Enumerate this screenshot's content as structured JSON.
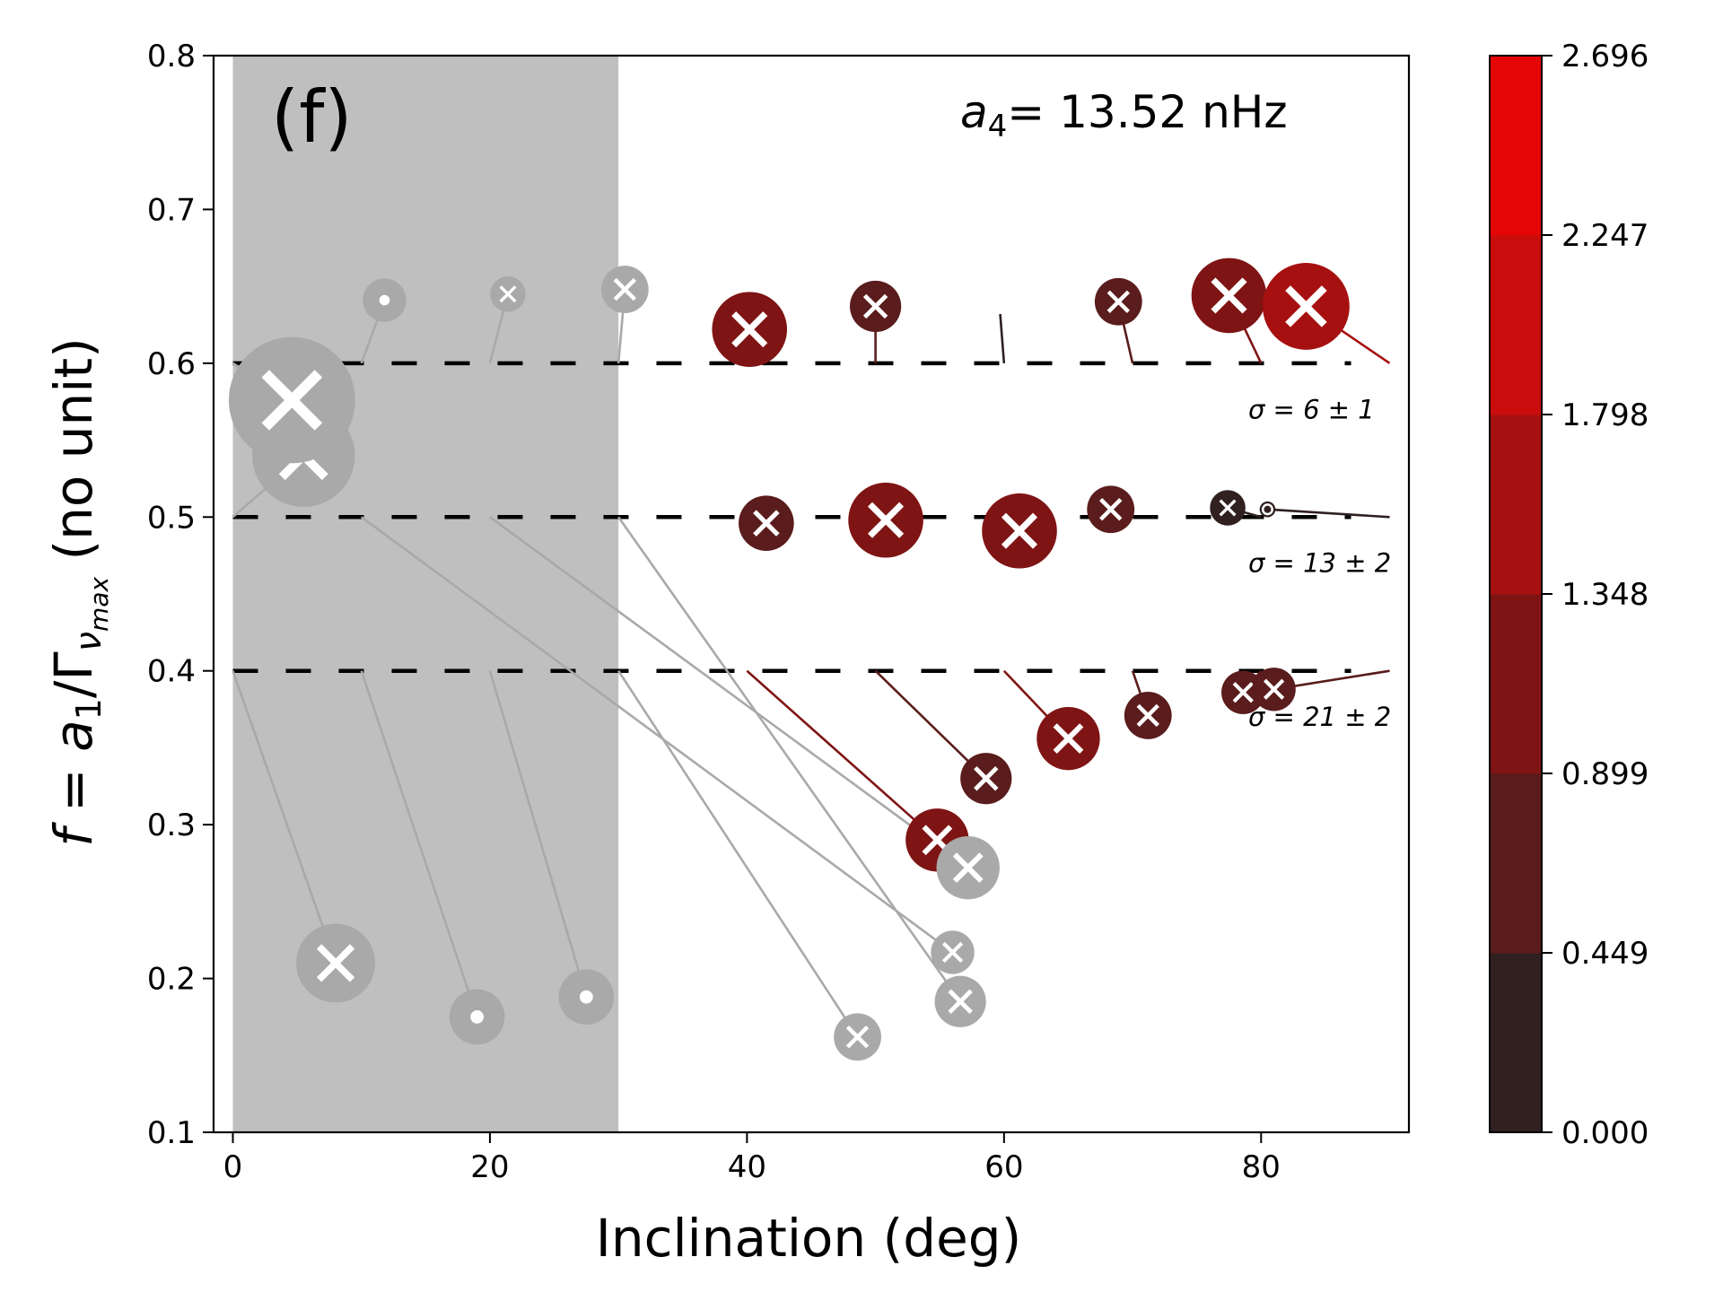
{
  "chart_data": {
    "type": "scatter",
    "panel_label": "(f)",
    "parameter_label": {
      "name_base": "a",
      "name_sub": "4",
      "text": "= 13.52 nHz"
    },
    "xlabel": "Inclination (deg)",
    "ylabel": {
      "prefix": "f",
      "eq": " = ",
      "a": "a",
      "a_sub": "1",
      "slash": "/Γ",
      "nu": "ν",
      "nu_sub": "max",
      "unit": " (no unit)"
    },
    "xlim": [
      -1.5,
      91.5
    ],
    "ylim": [
      0.1,
      0.8
    ],
    "xticks": [
      0,
      20,
      40,
      60,
      80
    ],
    "xtick_labels": [
      "0",
      "20",
      "40",
      "60",
      "80"
    ],
    "yticks": [
      0.1,
      0.2,
      0.3,
      0.4,
      0.5,
      0.6,
      0.7,
      0.8
    ],
    "ytick_labels": [
      "0.1",
      "0.2",
      "0.3",
      "0.4",
      "0.5",
      "0.6",
      "0.7",
      "0.8"
    ],
    "shaded_region": {
      "x0": 0,
      "x1": 30,
      "color": "#bfbfbf"
    },
    "reference_lines": [
      {
        "y": 0.6,
        "label": "σ = 6 ± 1",
        "label_x": 79,
        "label_y": 0.57
      },
      {
        "y": 0.5,
        "label": "σ = 13 ± 2",
        "label_x": 79,
        "label_y": 0.47
      },
      {
        "y": 0.4,
        "label": "σ = 21 ± 2",
        "label_x": 79,
        "label_y": 0.37
      }
    ],
    "colorbar": {
      "ticks": [
        "0.000",
        "0.449",
        "0.899",
        "1.348",
        "1.798",
        "2.247",
        "2.696"
      ],
      "min": 0,
      "max": 2.696,
      "colors": [
        "#302020",
        "#5a1c1c",
        "#7f1414",
        "#a71010",
        "#c90c0c",
        "#e40606",
        "#ff0000"
      ]
    },
    "marker_colors": {
      "biased_gray": "#a9a9a9",
      "cross": "#ffffff"
    },
    "points": [
      {
        "x0": 0,
        "y0": 0.4,
        "x": 8,
        "y": 0.21,
        "size": 2.0,
        "value": null,
        "marker": "x"
      },
      {
        "x0": 10,
        "y0": 0.4,
        "x": 19,
        "y": 0.175,
        "size": 1.4,
        "value": null,
        "marker": "dot"
      },
      {
        "x0": 20,
        "y0": 0.4,
        "x": 27.5,
        "y": 0.188,
        "size": 1.4,
        "value": null,
        "marker": "dot"
      },
      {
        "x0": 30,
        "y0": 0.4,
        "x": 48.6,
        "y": 0.162,
        "size": 1.2,
        "value": null,
        "marker": "x"
      },
      {
        "x0": 40,
        "y0": 0.4,
        "x": 54.8,
        "y": 0.29,
        "size": 1.6,
        "value": 1.2,
        "marker": "x"
      },
      {
        "x0": 50,
        "y0": 0.4,
        "x": 58.6,
        "y": 0.33,
        "size": 1.3,
        "value": 0.5,
        "marker": "x"
      },
      {
        "x0": 60,
        "y0": 0.4,
        "x": 65,
        "y": 0.356,
        "size": 1.6,
        "value": 1.1,
        "marker": "x"
      },
      {
        "x0": 70,
        "y0": 0.4,
        "x": 71.2,
        "y": 0.371,
        "size": 1.2,
        "value": 0.6,
        "marker": "x"
      },
      {
        "x0": 80,
        "y0": 0.4,
        "x": 78.6,
        "y": 0.386,
        "size": 1.1,
        "value": 0.7,
        "marker": "x"
      },
      {
        "x0": 90,
        "y0": 0.4,
        "x": 81,
        "y": 0.388,
        "size": 1.1,
        "value": 0.8,
        "marker": "x"
      },
      {
        "x0": 0,
        "y0": 0.5,
        "x": 5.5,
        "y": 0.54,
        "size": 2.6,
        "value": null,
        "marker": "x"
      },
      {
        "x0": 10,
        "y0": 0.5,
        "x": 56,
        "y": 0.217,
        "size": 1.1,
        "value": null,
        "marker": "x"
      },
      {
        "x0": 20,
        "y0": 0.5,
        "x": 57.2,
        "y": 0.272,
        "size": 1.6,
        "value": null,
        "marker": "x"
      },
      {
        "x0": 30,
        "y0": 0.5,
        "x": 56.6,
        "y": 0.185,
        "size": 1.3,
        "value": null,
        "marker": "x"
      },
      {
        "x0": 40,
        "y0": 0.5,
        "x": 41.5,
        "y": 0.496,
        "size": 1.4,
        "value": 0.6,
        "marker": "x"
      },
      {
        "x0": 50,
        "y0": 0.5,
        "x": 50.8,
        "y": 0.498,
        "size": 1.9,
        "value": 1.3,
        "marker": "x"
      },
      {
        "x0": 60,
        "y0": 0.5,
        "x": 61.2,
        "y": 0.491,
        "size": 1.9,
        "value": 1.2,
        "marker": "x"
      },
      {
        "x0": 70,
        "y0": 0.5,
        "x": 68.3,
        "y": 0.505,
        "size": 1.2,
        "value": 0.55,
        "marker": "x"
      },
      {
        "x0": 80,
        "y0": 0.5,
        "x": 77.4,
        "y": 0.506,
        "size": 0.9,
        "value": 0.35,
        "marker": "x"
      },
      {
        "x0": 90,
        "y0": 0.5,
        "x": 80.5,
        "y": 0.505,
        "size": 0.4,
        "value": 0.3,
        "marker": "o"
      },
      {
        "x0": 0,
        "y0": 0.6,
        "x": 4.6,
        "y": 0.576,
        "size": 3.2,
        "value": null,
        "marker": "x"
      },
      {
        "x0": 10,
        "y0": 0.6,
        "x": 11.8,
        "y": 0.641,
        "size": 1.1,
        "value": null,
        "marker": "dot"
      },
      {
        "x0": 20,
        "y0": 0.6,
        "x": 21.4,
        "y": 0.645,
        "size": 0.9,
        "value": null,
        "marker": "x"
      },
      {
        "x0": 30,
        "y0": 0.6,
        "x": 30.5,
        "y": 0.648,
        "size": 1.2,
        "value": null,
        "marker": "x"
      },
      {
        "x0": 40,
        "y0": 0.6,
        "x": 40.2,
        "y": 0.622,
        "size": 1.9,
        "value": 1.2,
        "marker": "x"
      },
      {
        "x0": 50,
        "y0": 0.6,
        "x": 50,
        "y": 0.637,
        "size": 1.3,
        "value": 0.6,
        "marker": "x"
      },
      {
        "x0": 60,
        "y0": 0.6,
        "x": 59.7,
        "y": 0.632,
        "size": 0,
        "value": 0.2,
        "marker": "none"
      },
      {
        "x0": 70,
        "y0": 0.6,
        "x": 68.9,
        "y": 0.64,
        "size": 1.2,
        "value": 0.55,
        "marker": "x"
      },
      {
        "x0": 80,
        "y0": 0.6,
        "x": 77.5,
        "y": 0.644,
        "size": 1.9,
        "value": 1.2,
        "marker": "x"
      },
      {
        "x0": 90,
        "y0": 0.6,
        "x": 83.5,
        "y": 0.637,
        "size": 2.2,
        "value": 1.4,
        "marker": "x"
      }
    ]
  }
}
